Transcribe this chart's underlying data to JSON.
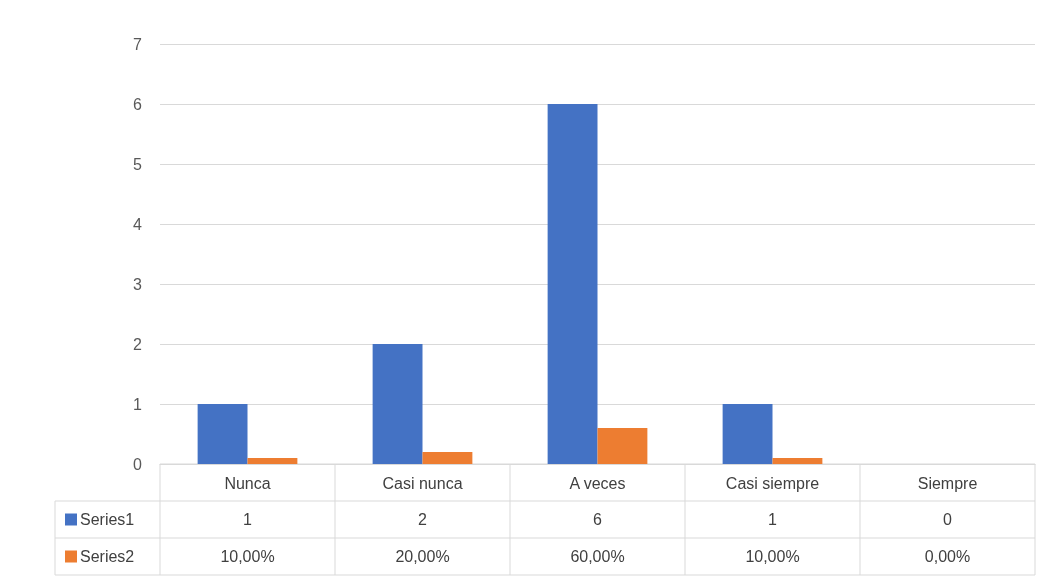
{
  "chart_data": {
    "type": "bar",
    "categories": [
      "Nunca",
      "Casi nunca",
      "A veces",
      "Casi siempre",
      "Siempre"
    ],
    "series": [
      {
        "name": "Series1",
        "color": "#4472c4",
        "values": [
          1,
          2,
          6,
          1,
          0
        ],
        "value_labels": [
          "1",
          "2",
          "6",
          "1",
          "0"
        ]
      },
      {
        "name": "Series2",
        "color": "#ed7d31",
        "values": [
          0.1,
          0.2,
          0.6,
          0.1,
          0
        ],
        "value_labels": [
          "10,00%",
          "20,00%",
          "60,00%",
          "10,00%",
          "0,00%"
        ]
      }
    ],
    "ylim": [
      0,
      7
    ],
    "yticks": [
      0,
      1,
      2,
      3,
      4,
      5,
      6,
      7
    ],
    "grid": "y",
    "legend": "bottom"
  }
}
